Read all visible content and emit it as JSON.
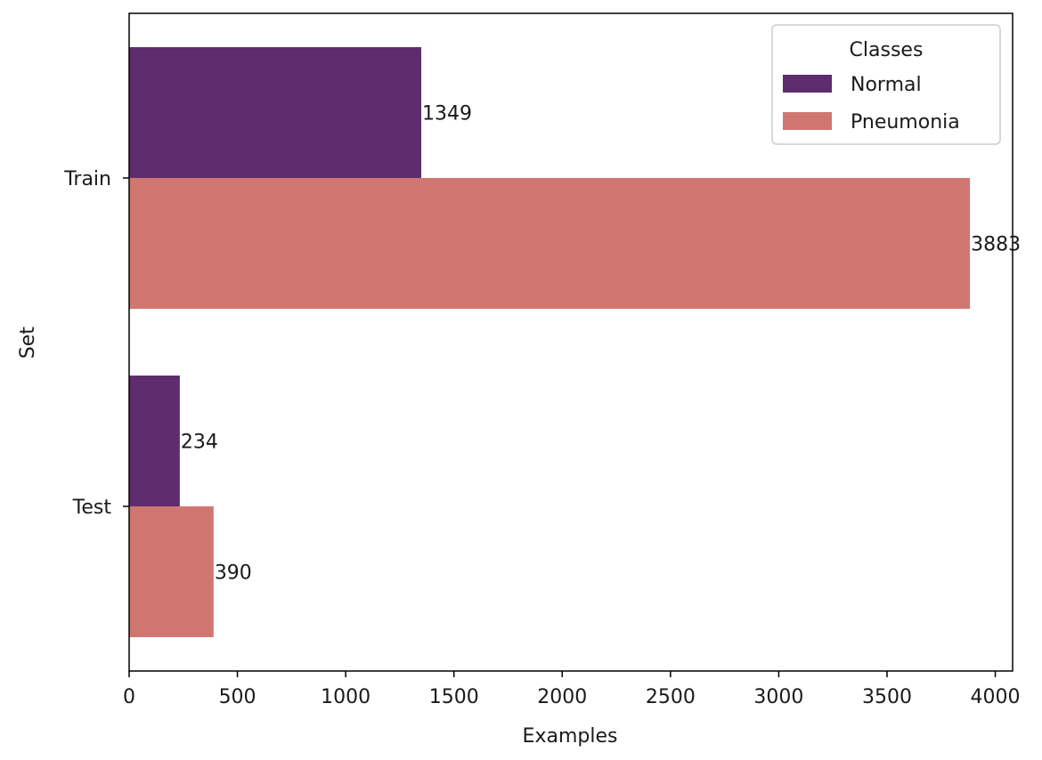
{
  "chart_data": {
    "type": "bar",
    "orientation": "horizontal",
    "categories": [
      "Train",
      "Test"
    ],
    "series": [
      {
        "name": "Normal",
        "values": [
          1349,
          234
        ],
        "color": "#5f2c6e"
      },
      {
        "name": "Pneumonia",
        "values": [
          3883,
          390
        ],
        "color": "#d07671"
      }
    ],
    "data_labels": [
      [
        "1349",
        "234"
      ],
      [
        "3883",
        "390"
      ]
    ],
    "xlabel": "Examples",
    "ylabel": "Set",
    "xlim": [
      0,
      4080
    ],
    "xticks": [
      0,
      500,
      1000,
      1500,
      2000,
      2500,
      3000,
      3500,
      4000
    ],
    "grid": false,
    "legend": {
      "title": "Classes",
      "position": "top-right"
    }
  }
}
